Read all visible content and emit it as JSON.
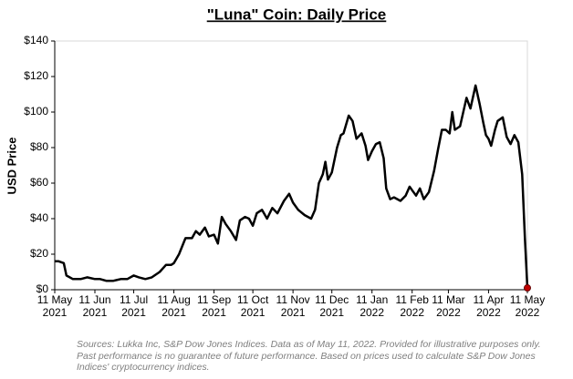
{
  "chart_data": {
    "type": "line",
    "title": "\"Luna\" Coin: Daily Price",
    "ylabel": "USD Price",
    "note": "Sources: Lukka Inc, S&P Dow Jones Indices.  Data as of May 11, 2022. Provided for illustrative purposes only.\nPast performance is no guarantee of future performance.  Based on prices used to calculate S&P Dow Jones\nIndices' cryptocurrency indices.",
    "x": [
      "2021-05-11",
      "2021-05-14",
      "2021-05-18",
      "2021-05-20",
      "2021-05-25",
      "2021-05-31",
      "2021-06-05",
      "2021-06-11",
      "2021-06-15",
      "2021-06-20",
      "2021-06-25",
      "2021-07-01",
      "2021-07-06",
      "2021-07-11",
      "2021-07-15",
      "2021-07-20",
      "2021-07-25",
      "2021-07-31",
      "2021-08-05",
      "2021-08-09",
      "2021-08-11",
      "2021-08-15",
      "2021-08-20",
      "2021-08-25",
      "2021-08-28",
      "2021-08-31",
      "2021-09-04",
      "2021-09-07",
      "2021-09-11",
      "2021-09-14",
      "2021-09-17",
      "2021-09-20",
      "2021-09-24",
      "2021-09-28",
      "2021-10-01",
      "2021-10-05",
      "2021-10-08",
      "2021-10-11",
      "2021-10-14",
      "2021-10-18",
      "2021-10-22",
      "2021-10-26",
      "2021-10-30",
      "2021-11-04",
      "2021-11-08",
      "2021-11-11",
      "2021-11-15",
      "2021-11-20",
      "2021-11-25",
      "2021-11-28",
      "2021-12-01",
      "2021-12-04",
      "2021-12-06",
      "2021-12-08",
      "2021-12-11",
      "2021-12-15",
      "2021-12-18",
      "2021-12-20",
      "2021-12-24",
      "2021-12-27",
      "2021-12-30",
      "2022-01-03",
      "2022-01-06",
      "2022-01-08",
      "2022-01-11",
      "2022-01-14",
      "2022-01-17",
      "2022-01-20",
      "2022-01-22",
      "2022-01-25",
      "2022-01-28",
      "2022-02-02",
      "2022-02-06",
      "2022-02-09",
      "2022-02-11",
      "2022-02-14",
      "2022-02-17",
      "2022-02-20",
      "2022-02-24",
      "2022-02-28",
      "2022-03-03",
      "2022-03-06",
      "2022-03-09",
      "2022-03-12",
      "2022-03-14",
      "2022-03-16",
      "2022-03-20",
      "2022-03-25",
      "2022-03-28",
      "2022-04-01",
      "2022-04-04",
      "2022-04-07",
      "2022-04-09",
      "2022-04-11",
      "2022-04-13",
      "2022-04-16",
      "2022-04-18",
      "2022-04-22",
      "2022-04-25",
      "2022-04-28",
      "2022-05-01",
      "2022-05-04",
      "2022-05-07",
      "2022-05-09",
      "2022-05-11"
    ],
    "series": [
      {
        "name": "Luna",
        "color": "#000000",
        "marker_color": "#c00000",
        "values": [
          16,
          16,
          15,
          8,
          6,
          6,
          7,
          6,
          6,
          5,
          5,
          6,
          6,
          8,
          7,
          6,
          7,
          10,
          14,
          14,
          15,
          20,
          29,
          29,
          33,
          31,
          35,
          30,
          31,
          26,
          41,
          37,
          33,
          28,
          39,
          41,
          40,
          36,
          43,
          45,
          40,
          46,
          43,
          50,
          54,
          49,
          45,
          42,
          40,
          45,
          60,
          65,
          72,
          62,
          66,
          80,
          87,
          88,
          98,
          95,
          85,
          88,
          81,
          73,
          78,
          82,
          83,
          74,
          57,
          51,
          52,
          50,
          53,
          58,
          56,
          53,
          57,
          51,
          55,
          67,
          79,
          90,
          90,
          88,
          100,
          90,
          92,
          108,
          102,
          115,
          105,
          94,
          87,
          85,
          81,
          90,
          95,
          97,
          86,
          82,
          87,
          83,
          65,
          30,
          1
        ]
      }
    ],
    "xlim": [
      "2021-05-11",
      "2022-05-11"
    ],
    "xticks": [
      {
        "value": "2021-05-11",
        "label": "11 May\n2021"
      },
      {
        "value": "2021-06-11",
        "label": "11 Jun\n2021"
      },
      {
        "value": "2021-07-11",
        "label": "11 Jul\n2021"
      },
      {
        "value": "2021-08-11",
        "label": "11 Aug\n2021"
      },
      {
        "value": "2021-09-11",
        "label": "11 Sep\n2021"
      },
      {
        "value": "2021-10-11",
        "label": "11 Oct\n2021"
      },
      {
        "value": "2021-11-11",
        "label": "11 Nov\n2021"
      },
      {
        "value": "2021-12-11",
        "label": "11 Dec\n2021"
      },
      {
        "value": "2022-01-11",
        "label": "11 Jan\n2022"
      },
      {
        "value": "2022-02-11",
        "label": "11 Feb\n2022"
      },
      {
        "value": "2022-03-11",
        "label": "11 Mar\n2022"
      },
      {
        "value": "2022-04-11",
        "label": "11 Apr\n2022"
      },
      {
        "value": "2022-05-11",
        "label": "11 May\n2022"
      }
    ],
    "ylim": [
      0,
      140
    ],
    "yticks": [
      {
        "value": 0,
        "label": "$0"
      },
      {
        "value": 20,
        "label": "$20"
      },
      {
        "value": 40,
        "label": "$40"
      },
      {
        "value": 60,
        "label": "$60"
      },
      {
        "value": 80,
        "label": "$80"
      },
      {
        "value": 100,
        "label": "$100"
      },
      {
        "value": 120,
        "label": "$120"
      },
      {
        "value": 140,
        "label": "$140"
      }
    ],
    "grid": false
  }
}
